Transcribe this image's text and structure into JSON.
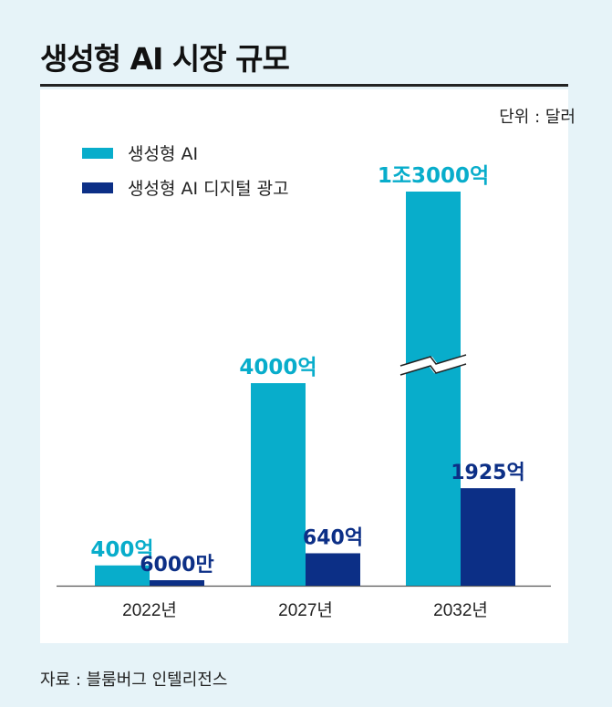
{
  "title": "생성형 AI 시장 규모",
  "unit": "단위 : 달러",
  "source": "자료 : 블룸버그 인텔리전스",
  "colors": {
    "series1": "#08adcb",
    "series2": "#0c2f86"
  },
  "chart_data": {
    "type": "bar",
    "categories": [
      "2022년",
      "2027년",
      "2032년"
    ],
    "series": [
      {
        "name": "생성형 AI",
        "values": [
          400,
          4000,
          13000
        ],
        "labels": [
          "400억",
          "4000억",
          "1조3000억"
        ]
      },
      {
        "name": "생성형 AI 디지털 광고",
        "values": [
          0.6,
          640,
          1925
        ],
        "labels": [
          "6000만",
          "640억",
          "1925억"
        ]
      }
    ],
    "unit": "억 달러",
    "axis_break": true,
    "legend": "top-left",
    "grid": false
  }
}
